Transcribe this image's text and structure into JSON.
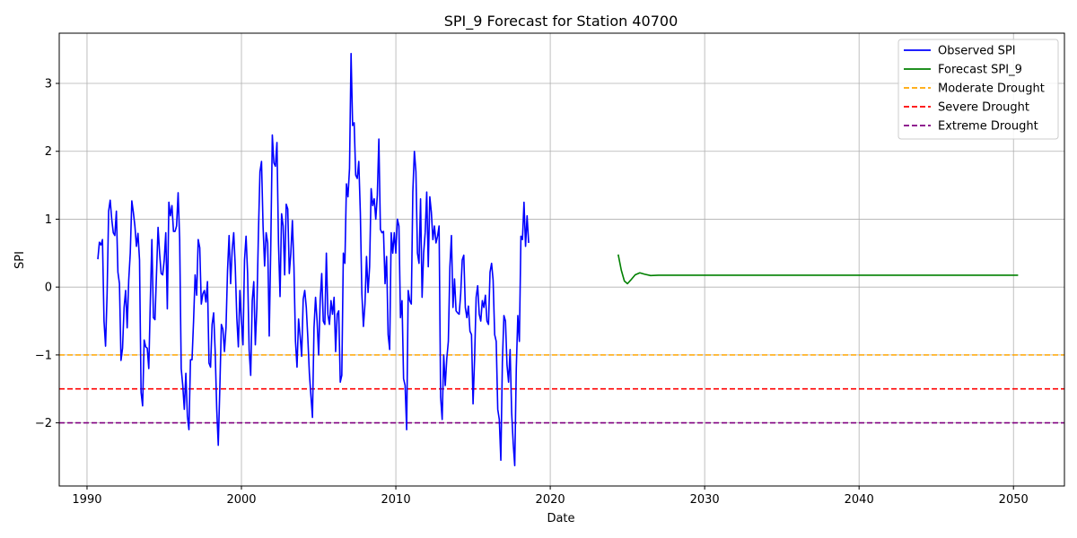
{
  "chart_data": {
    "type": "line",
    "title": "SPI_9 Forecast for Station 40700",
    "xlabel": "Date",
    "ylabel": "SPI",
    "xlim": [
      1988.2,
      2053.3
    ],
    "ylim": [
      -2.93,
      3.74
    ],
    "xticks": [
      1990,
      2000,
      2010,
      2020,
      2030,
      2040,
      2050
    ],
    "yticks": [
      -2,
      -1,
      0,
      1,
      2,
      3
    ],
    "grid": true,
    "legend_position": "top-right",
    "series": [
      {
        "name": "Observed SPI",
        "color": "#0000ff",
        "points": [
          [
            1990.7,
            0.41
          ],
          [
            1990.8,
            0.66
          ],
          [
            1990.9,
            0.62
          ],
          [
            1991.0,
            0.7
          ],
          [
            1991.1,
            -0.5
          ],
          [
            1991.2,
            -0.87
          ],
          [
            1991.3,
            -0.1
          ],
          [
            1991.4,
            1.12
          ],
          [
            1991.5,
            1.28
          ],
          [
            1991.6,
            1.0
          ],
          [
            1991.7,
            0.8
          ],
          [
            1991.8,
            0.76
          ],
          [
            1991.9,
            1.12
          ],
          [
            1992.0,
            0.22
          ],
          [
            1992.1,
            0.05
          ],
          [
            1992.2,
            -1.08
          ],
          [
            1992.3,
            -0.9
          ],
          [
            1992.4,
            -0.3
          ],
          [
            1992.5,
            -0.05
          ],
          [
            1992.6,
            -0.6
          ],
          [
            1992.7,
            0.1
          ],
          [
            1992.8,
            0.5
          ],
          [
            1992.9,
            1.27
          ],
          [
            1993.0,
            1.1
          ],
          [
            1993.1,
            0.9
          ],
          [
            1993.2,
            0.6
          ],
          [
            1993.3,
            0.79
          ],
          [
            1993.4,
            0.4
          ],
          [
            1993.5,
            -1.55
          ],
          [
            1993.6,
            -1.75
          ],
          [
            1993.7,
            -0.78
          ],
          [
            1993.8,
            -0.88
          ],
          [
            1993.9,
            -0.9
          ],
          [
            1994.0,
            -1.2
          ],
          [
            1994.1,
            -0.2
          ],
          [
            1994.2,
            0.7
          ],
          [
            1994.3,
            -0.45
          ],
          [
            1994.4,
            -0.48
          ],
          [
            1994.5,
            0.2
          ],
          [
            1994.6,
            0.88
          ],
          [
            1994.7,
            0.5
          ],
          [
            1994.8,
            0.2
          ],
          [
            1994.9,
            0.18
          ],
          [
            1995.0,
            0.4
          ],
          [
            1995.1,
            0.8
          ],
          [
            1995.2,
            -0.32
          ],
          [
            1995.3,
            1.25
          ],
          [
            1995.4,
            1.05
          ],
          [
            1995.5,
            1.2
          ],
          [
            1995.6,
            0.82
          ],
          [
            1995.7,
            0.82
          ],
          [
            1995.8,
            0.9
          ],
          [
            1995.9,
            1.39
          ],
          [
            1996.0,
            0.7
          ],
          [
            1996.1,
            -1.2
          ],
          [
            1996.2,
            -1.45
          ],
          [
            1996.3,
            -1.8
          ],
          [
            1996.4,
            -1.27
          ],
          [
            1996.5,
            -1.9
          ],
          [
            1996.6,
            -2.1
          ],
          [
            1996.7,
            -1.07
          ],
          [
            1996.8,
            -1.07
          ],
          [
            1996.9,
            -0.5
          ],
          [
            1997.0,
            0.18
          ],
          [
            1997.1,
            -0.12
          ],
          [
            1997.2,
            0.7
          ],
          [
            1997.3,
            0.58
          ],
          [
            1997.4,
            -0.25
          ],
          [
            1997.5,
            -0.1
          ],
          [
            1997.6,
            -0.05
          ],
          [
            1997.7,
            -0.22
          ],
          [
            1997.8,
            0.08
          ],
          [
            1997.9,
            -1.12
          ],
          [
            1998.0,
            -1.18
          ],
          [
            1998.1,
            -0.55
          ],
          [
            1998.2,
            -0.38
          ],
          [
            1998.3,
            -0.95
          ],
          [
            1998.4,
            -1.8
          ],
          [
            1998.5,
            -2.33
          ],
          [
            1998.6,
            -1.5
          ],
          [
            1998.7,
            -0.55
          ],
          [
            1998.8,
            -0.62
          ],
          [
            1998.9,
            -0.95
          ],
          [
            1999.0,
            -0.6
          ],
          [
            1999.1,
            0.25
          ],
          [
            1999.2,
            0.76
          ],
          [
            1999.3,
            0.05
          ],
          [
            1999.4,
            0.55
          ],
          [
            1999.5,
            0.8
          ],
          [
            1999.6,
            0.3
          ],
          [
            1999.7,
            -0.45
          ],
          [
            1999.8,
            -0.88
          ],
          [
            1999.9,
            -0.05
          ],
          [
            2000.0,
            -0.5
          ],
          [
            2000.1,
            -0.85
          ],
          [
            2000.2,
            0.4
          ],
          [
            2000.3,
            0.75
          ],
          [
            2000.4,
            0.2
          ],
          [
            2000.5,
            -0.93
          ],
          [
            2000.6,
            -1.3
          ],
          [
            2000.7,
            -0.2
          ],
          [
            2000.8,
            0.08
          ],
          [
            2000.9,
            -0.85
          ],
          [
            2001.0,
            -0.3
          ],
          [
            2001.1,
            0.8
          ],
          [
            2001.2,
            1.7
          ],
          [
            2001.3,
            1.85
          ],
          [
            2001.4,
            0.9
          ],
          [
            2001.5,
            0.31
          ],
          [
            2001.6,
            0.8
          ],
          [
            2001.7,
            0.65
          ],
          [
            2001.8,
            -0.72
          ],
          [
            2001.9,
            0.6
          ],
          [
            2002.0,
            2.24
          ],
          [
            2002.1,
            1.83
          ],
          [
            2002.2,
            1.78
          ],
          [
            2002.3,
            2.13
          ],
          [
            2002.4,
            0.65
          ],
          [
            2002.5,
            -0.14
          ],
          [
            2002.6,
            1.08
          ],
          [
            2002.7,
            0.9
          ],
          [
            2002.8,
            0.18
          ],
          [
            2002.9,
            1.22
          ],
          [
            2003.0,
            1.15
          ],
          [
            2003.1,
            0.2
          ],
          [
            2003.2,
            0.5
          ],
          [
            2003.3,
            0.98
          ],
          [
            2003.4,
            0.3
          ],
          [
            2003.5,
            -0.8
          ],
          [
            2003.6,
            -1.18
          ],
          [
            2003.7,
            -0.47
          ],
          [
            2003.8,
            -0.72
          ],
          [
            2003.9,
            -1.02
          ],
          [
            2004.0,
            -0.18
          ],
          [
            2004.1,
            -0.05
          ],
          [
            2004.2,
            -0.3
          ],
          [
            2004.3,
            -0.75
          ],
          [
            2004.4,
            -1.27
          ],
          [
            2004.5,
            -1.6
          ],
          [
            2004.6,
            -1.92
          ],
          [
            2004.7,
            -0.6
          ],
          [
            2004.8,
            -0.15
          ],
          [
            2004.9,
            -0.5
          ],
          [
            2005.0,
            -1.0
          ],
          [
            2005.1,
            -0.2
          ],
          [
            2005.2,
            0.2
          ],
          [
            2005.3,
            -0.5
          ],
          [
            2005.4,
            -0.55
          ],
          [
            2005.5,
            0.5
          ],
          [
            2005.6,
            -0.4
          ],
          [
            2005.7,
            -0.55
          ],
          [
            2005.8,
            -0.2
          ],
          [
            2005.9,
            -0.4
          ],
          [
            2006.0,
            -0.15
          ],
          [
            2006.1,
            -0.95
          ],
          [
            2006.2,
            -0.4
          ],
          [
            2006.3,
            -0.35
          ],
          [
            2006.4,
            -1.4
          ],
          [
            2006.5,
            -1.3
          ],
          [
            2006.6,
            0.5
          ],
          [
            2006.7,
            0.35
          ],
          [
            2006.8,
            1.52
          ],
          [
            2006.9,
            1.33
          ],
          [
            2007.0,
            1.75
          ],
          [
            2007.1,
            3.44
          ],
          [
            2007.2,
            2.38
          ],
          [
            2007.3,
            2.42
          ],
          [
            2007.4,
            1.65
          ],
          [
            2007.5,
            1.6
          ],
          [
            2007.6,
            1.85
          ],
          [
            2007.7,
            1.1
          ],
          [
            2007.8,
            -0.1
          ],
          [
            2007.9,
            -0.58
          ],
          [
            2008.0,
            -0.25
          ],
          [
            2008.1,
            0.45
          ],
          [
            2008.2,
            -0.08
          ],
          [
            2008.3,
            0.3
          ],
          [
            2008.4,
            1.45
          ],
          [
            2008.5,
            1.2
          ],
          [
            2008.6,
            1.3
          ],
          [
            2008.7,
            1.0
          ],
          [
            2008.8,
            1.35
          ],
          [
            2008.9,
            2.18
          ],
          [
            2009.0,
            0.85
          ],
          [
            2009.1,
            0.8
          ],
          [
            2009.2,
            0.82
          ],
          [
            2009.3,
            0.05
          ],
          [
            2009.4,
            0.45
          ],
          [
            2009.5,
            -0.7
          ],
          [
            2009.6,
            -0.92
          ],
          [
            2009.7,
            0.8
          ],
          [
            2009.8,
            0.5
          ],
          [
            2009.9,
            0.8
          ],
          [
            2010.0,
            0.5
          ],
          [
            2010.1,
            1.0
          ],
          [
            2010.2,
            0.9
          ],
          [
            2010.3,
            -0.45
          ],
          [
            2010.4,
            -0.2
          ],
          [
            2010.5,
            -1.35
          ],
          [
            2010.6,
            -1.45
          ],
          [
            2010.7,
            -2.1
          ],
          [
            2010.8,
            -0.05
          ],
          [
            2010.9,
            -0.2
          ],
          [
            2011.0,
            -0.25
          ],
          [
            2011.1,
            1.4
          ],
          [
            2011.2,
            2.0
          ],
          [
            2011.3,
            1.7
          ],
          [
            2011.4,
            0.5
          ],
          [
            2011.5,
            0.35
          ],
          [
            2011.6,
            1.3
          ],
          [
            2011.7,
            -0.15
          ],
          [
            2011.8,
            0.5
          ],
          [
            2011.9,
            0.8
          ],
          [
            2012.0,
            1.4
          ],
          [
            2012.1,
            0.3
          ],
          [
            2012.2,
            1.33
          ],
          [
            2012.3,
            1.1
          ],
          [
            2012.4,
            0.7
          ],
          [
            2012.5,
            0.9
          ],
          [
            2012.6,
            0.65
          ],
          [
            2012.7,
            0.75
          ],
          [
            2012.8,
            0.9
          ],
          [
            2012.9,
            -1.62
          ],
          [
            2013.0,
            -1.95
          ],
          [
            2013.1,
            -1.0
          ],
          [
            2013.2,
            -1.45
          ],
          [
            2013.3,
            -1.05
          ],
          [
            2013.4,
            -0.8
          ],
          [
            2013.5,
            0.3
          ],
          [
            2013.6,
            0.76
          ],
          [
            2013.7,
            -0.3
          ],
          [
            2013.8,
            0.12
          ],
          [
            2013.9,
            -0.35
          ],
          [
            2014.0,
            -0.38
          ],
          [
            2014.1,
            -0.4
          ],
          [
            2014.2,
            -0.1
          ],
          [
            2014.3,
            0.4
          ],
          [
            2014.4,
            0.47
          ],
          [
            2014.5,
            -0.3
          ],
          [
            2014.6,
            -0.45
          ],
          [
            2014.7,
            -0.28
          ],
          [
            2014.8,
            -0.65
          ],
          [
            2014.9,
            -0.7
          ],
          [
            2015.0,
            -1.72
          ],
          [
            2015.1,
            -1.05
          ],
          [
            2015.2,
            -0.15
          ],
          [
            2015.3,
            0.02
          ],
          [
            2015.4,
            -0.4
          ],
          [
            2015.5,
            -0.5
          ],
          [
            2015.6,
            -0.2
          ],
          [
            2015.7,
            -0.3
          ],
          [
            2015.8,
            -0.12
          ],
          [
            2015.9,
            -0.5
          ],
          [
            2016.0,
            -0.55
          ],
          [
            2016.1,
            0.22
          ],
          [
            2016.2,
            0.35
          ],
          [
            2016.3,
            0.1
          ],
          [
            2016.4,
            -0.7
          ],
          [
            2016.5,
            -0.8
          ],
          [
            2016.6,
            -1.8
          ],
          [
            2016.7,
            -1.95
          ],
          [
            2016.8,
            -2.55
          ],
          [
            2016.9,
            -1.1
          ],
          [
            2017.0,
            -0.42
          ],
          [
            2017.1,
            -0.5
          ],
          [
            2017.2,
            -1.15
          ],
          [
            2017.3,
            -1.4
          ],
          [
            2017.4,
            -0.92
          ],
          [
            2017.5,
            -1.85
          ],
          [
            2017.6,
            -2.3
          ],
          [
            2017.7,
            -2.63
          ],
          [
            2017.8,
            -1.2
          ],
          [
            2017.9,
            -0.42
          ],
          [
            2018.0,
            -0.8
          ],
          [
            2018.1,
            0.75
          ],
          [
            2018.2,
            0.7
          ],
          [
            2018.3,
            1.25
          ],
          [
            2018.4,
            0.6
          ],
          [
            2018.5,
            1.05
          ],
          [
            2018.6,
            0.65
          ]
        ]
      },
      {
        "name": "Forecast SPI_9",
        "color": "#008000",
        "points": [
          [
            2024.4,
            0.48
          ],
          [
            2024.6,
            0.25
          ],
          [
            2024.8,
            0.09
          ],
          [
            2025.0,
            0.05
          ],
          [
            2025.2,
            0.1
          ],
          [
            2025.5,
            0.18
          ],
          [
            2025.8,
            0.21
          ],
          [
            2026.1,
            0.19
          ],
          [
            2026.5,
            0.17
          ],
          [
            2027.0,
            0.175
          ],
          [
            2028.0,
            0.175
          ],
          [
            2030.0,
            0.175
          ],
          [
            2035.0,
            0.175
          ],
          [
            2040.0,
            0.175
          ],
          [
            2045.0,
            0.175
          ],
          [
            2050.3,
            0.175
          ]
        ]
      }
    ],
    "reference_lines": [
      {
        "name": "Moderate Drought",
        "value": -1.0,
        "color": "#ffa500"
      },
      {
        "name": "Severe Drought",
        "value": -1.5,
        "color": "#ff0000"
      },
      {
        "name": "Extreme Drought",
        "value": -2.0,
        "color": "#800080"
      }
    ]
  }
}
